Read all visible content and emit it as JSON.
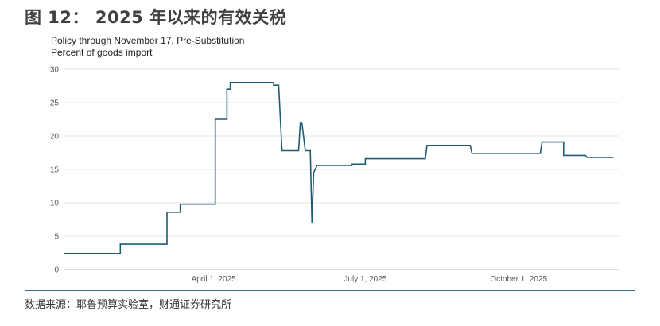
{
  "figure_title": "图 12：  2025 年以来的有效关税",
  "subtitle_line1": "Policy through November 17, Pre-Substitution",
  "subtitle_line2": "Percent of goods import",
  "source": "数据来源：耶鲁预算实验室，财通证券研究所",
  "colors": {
    "line": "#1f5c73",
    "rule": "#3b6f87",
    "grid": "#e6e6e6"
  },
  "chart_data": {
    "type": "line",
    "title": "图 12：  2025 年以来的有效关税",
    "subtitle": "Policy through November 17, Pre-Substitution",
    "ylabel": "Percent of goods import",
    "xlabel": "",
    "ylim": [
      0,
      30
    ],
    "xlim": [
      "2025-01-01",
      "2025-11-30"
    ],
    "grid": "horizontal",
    "y_ticks": [
      "0",
      "5",
      "10",
      "15",
      "20",
      "25",
      "30"
    ],
    "x_ticks": [
      {
        "date": "2025-04-01",
        "label": "April 1, 2025"
      },
      {
        "date": "2025-07-01",
        "label": "July 1, 2025"
      },
      {
        "date": "2025-10-01",
        "label": "October 1, 2025"
      }
    ],
    "series": [
      {
        "points": [
          [
            "2025-01-01",
            2.4
          ],
          [
            "2025-02-04",
            2.4
          ],
          [
            "2025-02-04",
            3.8
          ],
          [
            "2025-03-04",
            3.8
          ],
          [
            "2025-03-04",
            8.6
          ],
          [
            "2025-03-12",
            8.6
          ],
          [
            "2025-03-12",
            9.8
          ],
          [
            "2025-04-02",
            9.8
          ],
          [
            "2025-04-02",
            22.5
          ],
          [
            "2025-04-09",
            22.5
          ],
          [
            "2025-04-09",
            27.0
          ],
          [
            "2025-04-11",
            27.0
          ],
          [
            "2025-04-11",
            28.0
          ],
          [
            "2025-05-07",
            28.0
          ],
          [
            "2025-05-07",
            27.6
          ],
          [
            "2025-05-10",
            27.6
          ],
          [
            "2025-05-12",
            17.8
          ],
          [
            "2025-05-22",
            17.8
          ],
          [
            "2025-05-23",
            21.9
          ],
          [
            "2025-05-24",
            21.9
          ],
          [
            "2025-05-26",
            17.8
          ],
          [
            "2025-05-29",
            17.8
          ],
          [
            "2025-05-30",
            6.9
          ],
          [
            "2025-05-31",
            14.5
          ],
          [
            "2025-06-02",
            15.6
          ],
          [
            "2025-06-23",
            15.6
          ],
          [
            "2025-06-23",
            15.8
          ],
          [
            "2025-07-01",
            15.8
          ],
          [
            "2025-07-01",
            16.6
          ],
          [
            "2025-08-06",
            16.6
          ],
          [
            "2025-08-07",
            18.6
          ],
          [
            "2025-09-02",
            18.6
          ],
          [
            "2025-09-03",
            17.4
          ],
          [
            "2025-10-14",
            17.4
          ],
          [
            "2025-10-15",
            19.1
          ],
          [
            "2025-10-28",
            19.1
          ],
          [
            "2025-10-28",
            17.1
          ],
          [
            "2025-11-10",
            17.1
          ],
          [
            "2025-11-11",
            16.8
          ],
          [
            "2025-11-27",
            16.8
          ]
        ]
      }
    ]
  }
}
